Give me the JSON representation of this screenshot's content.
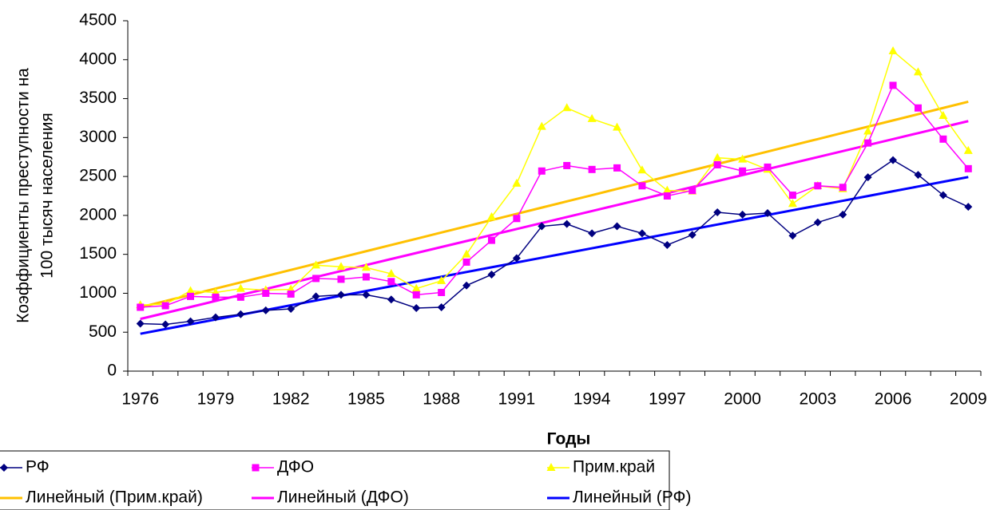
{
  "chart_data": {
    "type": "line",
    "xlabel": "Годы",
    "ylabel": [
      "Коэффициенты преступности на",
      "100 тысяч населения"
    ],
    "categories": [
      1976,
      null,
      null,
      1979,
      null,
      null,
      1982,
      null,
      null,
      1985,
      null,
      null,
      1988,
      null,
      null,
      1991,
      null,
      null,
      1994,
      null,
      null,
      1997,
      null,
      null,
      2000,
      null,
      null,
      2003,
      null,
      null,
      2006,
      null,
      null,
      2009
    ],
    "ylim": [
      0,
      4500
    ],
    "yticks": [
      0,
      500,
      1000,
      1500,
      2000,
      2500,
      3000,
      3500,
      4000,
      4500
    ],
    "grid": false,
    "series": [
      {
        "name": "РФ",
        "color": "#000080",
        "marker": "diamond",
        "values": [
          610,
          600,
          640,
          690,
          730,
          780,
          800,
          960,
          980,
          980,
          920,
          810,
          820,
          1100,
          1240,
          1450,
          1860,
          1890,
          1770,
          1860,
          1770,
          1620,
          1750,
          2040,
          2010,
          2030,
          1740,
          1910,
          2010,
          2490,
          2710,
          2520,
          2260,
          2110
        ]
      },
      {
        "name": "ДФО",
        "color": "#ff00ff",
        "marker": "square",
        "values": [
          820,
          840,
          960,
          950,
          950,
          1000,
          990,
          1190,
          1180,
          1210,
          1150,
          980,
          1010,
          1400,
          1680,
          1960,
          2570,
          2640,
          2590,
          2610,
          2380,
          2250,
          2320,
          2650,
          2570,
          2620,
          2260,
          2380,
          2360,
          2930,
          3670,
          3380,
          2980,
          2600
        ]
      },
      {
        "name": "Прим.край",
        "color": "#ffff00",
        "marker": "triangle",
        "values": [
          850,
          860,
          1030,
          1010,
          1060,
          1040,
          1050,
          1360,
          1340,
          1330,
          1250,
          1060,
          1160,
          1500,
          1980,
          2410,
          3140,
          3380,
          3240,
          3130,
          2580,
          2320,
          2310,
          2740,
          2720,
          2590,
          2150,
          2380,
          2340,
          3080,
          4110,
          3840,
          3280,
          2830
        ]
      },
      {
        "name": "Линейный (Прим.край)",
        "color": "#ffc000",
        "marker": "none",
        "values": [
          820,
          900,
          980,
          1060,
          1140,
          1220,
          1300,
          1380,
          1460,
          1540,
          1620,
          1700,
          1780,
          1860,
          1940,
          2020,
          2100,
          2180,
          2260,
          2340,
          2420,
          2500,
          2580,
          2660,
          2740,
          2820,
          2900,
          2980,
          3060,
          3140,
          3220,
          3300,
          3380,
          3460
        ]
      },
      {
        "name": "Линейный (ДФО)",
        "color": "#ff00ff",
        "marker": "none",
        "values": [
          670,
          747,
          824,
          901,
          978,
          1055,
          1132,
          1209,
          1286,
          1363,
          1440,
          1517,
          1594,
          1671,
          1748,
          1825,
          1902,
          1979,
          2056,
          2133,
          2210,
          2287,
          2364,
          2441,
          2518,
          2595,
          2672,
          2749,
          2826,
          2903,
          2980,
          3057,
          3134,
          3211
        ]
      },
      {
        "name": "Линейный (РФ)",
        "color": "#0000ff",
        "marker": "none",
        "values": [
          480,
          541,
          602,
          663,
          724,
          785,
          846,
          907,
          968,
          1029,
          1090,
          1151,
          1212,
          1273,
          1334,
          1395,
          1456,
          1517,
          1578,
          1639,
          1700,
          1761,
          1822,
          1883,
          1944,
          2005,
          2066,
          2127,
          2188,
          2249,
          2310,
          2371,
          2432,
          2493
        ]
      }
    ]
  }
}
